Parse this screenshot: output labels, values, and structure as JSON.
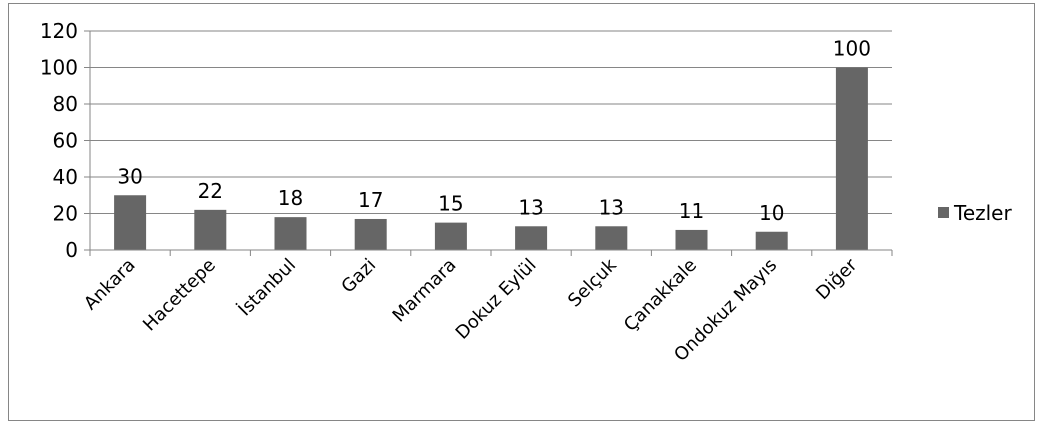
{
  "chart_data": {
    "type": "bar",
    "categories": [
      "Ankara",
      "Hacettepe",
      "İstanbul",
      "Gazi",
      "Marmara",
      "Dokuz Eylül",
      "Selçuk",
      "Çanakkale",
      "Ondokuz Mayıs",
      "Diğer"
    ],
    "series": [
      {
        "name": "Tezler",
        "values": [
          30,
          22,
          18,
          17,
          15,
          13,
          13,
          11,
          10,
          100
        ],
        "color": "#666666"
      }
    ],
    "ylim": [
      0,
      120
    ],
    "yticks": [
      0,
      20,
      40,
      60,
      80,
      100,
      120
    ],
    "grid": true,
    "legend_position": "right",
    "title": "",
    "xlabel": "",
    "ylabel": ""
  }
}
